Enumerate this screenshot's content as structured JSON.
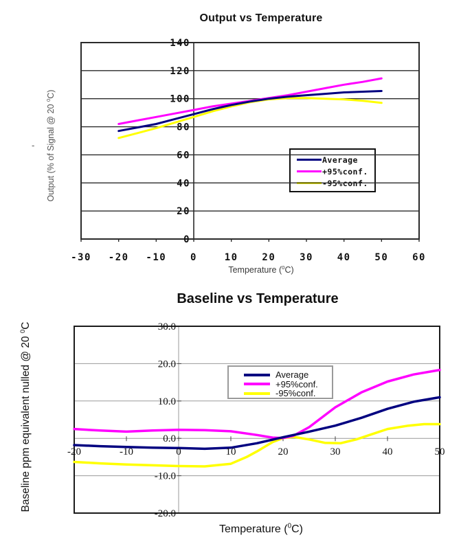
{
  "page": {
    "background": "#ffffff"
  },
  "stray_dash": "-",
  "colors": {
    "average": "#000080",
    "plus95conf": "#ff00ff",
    "minus95conf": "#ffff00"
  },
  "chart_data": [
    {
      "type": "line",
      "title": "Output vs Temperature",
      "xlabel": {
        "pre": "Temperature (",
        "sup": "0",
        "post": "C)"
      },
      "ylabel": {
        "pre": "Output (% of Signal @ 20 ",
        "sup": "0",
        "post": "C)"
      },
      "xlim": [
        -30,
        60
      ],
      "ylim": [
        0,
        140
      ],
      "xticks": [
        "-30",
        "-20",
        "-10",
        "0",
        "10",
        "20",
        "30",
        "40",
        "50",
        "60"
      ],
      "xtick_values": [
        -30,
        -20,
        -10,
        0,
        10,
        20,
        30,
        40,
        50,
        60
      ],
      "yticks": [
        "140",
        "120",
        "100",
        "80",
        "60",
        "40",
        "20",
        "0"
      ],
      "ytick_values": [
        140,
        120,
        100,
        80,
        60,
        40,
        20,
        0
      ],
      "grid": {
        "horizontal": true,
        "vertical_line_at_x": 0
      },
      "legend": {
        "position": "middle-right",
        "entries": [
          {
            "label": "Average",
            "color": "#000080"
          },
          {
            "label": "+95%conf.",
            "color": "#ff00ff"
          },
          {
            "label": "-95%conf.",
            "color": "#ffff00"
          }
        ]
      },
      "series": [
        {
          "name": "-95%conf.",
          "color": "#ffff00",
          "points": [
            [
              -20,
              72
            ],
            [
              -15,
              75.5
            ],
            [
              -10,
              79
            ],
            [
              -5,
              83
            ],
            [
              0,
              87
            ],
            [
              5,
              91
            ],
            [
              10,
              94.5
            ],
            [
              15,
              97.5
            ],
            [
              20,
              99.5
            ],
            [
              25,
              100.5
            ],
            [
              30,
              100.5
            ],
            [
              35,
              100
            ],
            [
              40,
              99.5
            ],
            [
              45,
              98.5
            ],
            [
              50,
              97
            ]
          ]
        },
        {
          "name": "+95%conf.",
          "color": "#ff00ff",
          "points": [
            [
              -20,
              82
            ],
            [
              -15,
              84.5
            ],
            [
              -10,
              87
            ],
            [
              -5,
              89.5
            ],
            [
              0,
              92
            ],
            [
              5,
              94.5
            ],
            [
              10,
              96.5
            ],
            [
              15,
              98.5
            ],
            [
              20,
              100.5
            ],
            [
              25,
              102.5
            ],
            [
              30,
              105
            ],
            [
              35,
              107.5
            ],
            [
              40,
              110
            ],
            [
              45,
              112
            ],
            [
              50,
              114.5
            ]
          ]
        },
        {
          "name": "Average",
          "color": "#000080",
          "points": [
            [
              -20,
              77
            ],
            [
              -15,
              79.5
            ],
            [
              -10,
              82
            ],
            [
              -5,
              85.5
            ],
            [
              0,
              89
            ],
            [
              5,
              92.5
            ],
            [
              10,
              95.5
            ],
            [
              15,
              98
            ],
            [
              20,
              100
            ],
            [
              25,
              101.5
            ],
            [
              30,
              102.5
            ],
            [
              35,
              103.5
            ],
            [
              40,
              104.5
            ],
            [
              45,
              105
            ],
            [
              50,
              105.5
            ]
          ]
        }
      ]
    },
    {
      "type": "line",
      "title": "Baseline vs Temperature",
      "xlabel": {
        "pre": "Temperature (",
        "sup": "0",
        "post": "C)"
      },
      "ylabel": {
        "pre": "Baseline ppm equivalent nulled @ 20 ",
        "sup": "0",
        "post": "C"
      },
      "xlim": [
        -20,
        50
      ],
      "ylim": [
        -20,
        30
      ],
      "xticks": [
        "-20",
        "-10",
        "0",
        "10",
        "20",
        "30",
        "40",
        "50"
      ],
      "xtick_values": [
        -20,
        -10,
        0,
        10,
        20,
        30,
        40,
        50
      ],
      "yticks": [
        "30.0",
        "20.0",
        "10.0",
        "0.0",
        "-10.0",
        "-20.0"
      ],
      "ytick_values": [
        30,
        20,
        10,
        0,
        -10,
        -20
      ],
      "grid": {
        "horizontal": true,
        "vertical_line_at_x": 0
      },
      "legend": {
        "position": "top-center",
        "entries": [
          {
            "label": "Average",
            "color": "#000080"
          },
          {
            "label": "+95%conf.",
            "color": "#ff00ff"
          },
          {
            "label": "-95%conf.",
            "color": "#ffff00"
          }
        ]
      },
      "series": [
        {
          "name": "-95%conf.",
          "color": "#ffff00",
          "points": [
            [
              -20,
              -6.3
            ],
            [
              -15,
              -6.7
            ],
            [
              -10,
              -7
            ],
            [
              -5,
              -7.2
            ],
            [
              0,
              -7.4
            ],
            [
              5,
              -7.5
            ],
            [
              10,
              -6.8
            ],
            [
              13,
              -5
            ],
            [
              15,
              -3.5
            ],
            [
              18,
              -1
            ],
            [
              20,
              0.1
            ],
            [
              22,
              0.4
            ],
            [
              25,
              -0.3
            ],
            [
              28,
              -1.2
            ],
            [
              31,
              -1.3
            ],
            [
              34,
              -0.3
            ],
            [
              37,
              1.1
            ],
            [
              40,
              2.5
            ],
            [
              44,
              3.4
            ],
            [
              47,
              3.8
            ],
            [
              50,
              3.8
            ]
          ]
        },
        {
          "name": "+95%conf.",
          "color": "#ff00ff",
          "points": [
            [
              -20,
              2.5
            ],
            [
              -15,
              2.1
            ],
            [
              -10,
              1.8
            ],
            [
              -5,
              2.1
            ],
            [
              0,
              2.3
            ],
            [
              5,
              2.2
            ],
            [
              10,
              1.9
            ],
            [
              15,
              0.9
            ],
            [
              18,
              0.2
            ],
            [
              20,
              0.1
            ],
            [
              22,
              0.7
            ],
            [
              25,
              3
            ],
            [
              30,
              8.3
            ],
            [
              35,
              12.3
            ],
            [
              40,
              15.2
            ],
            [
              45,
              17.1
            ],
            [
              50,
              18.3
            ]
          ]
        },
        {
          "name": "Average",
          "color": "#000080",
          "points": [
            [
              -20,
              -1.8
            ],
            [
              -15,
              -2.1
            ],
            [
              -10,
              -2.3
            ],
            [
              -5,
              -2.5
            ],
            [
              0,
              -2.6
            ],
            [
              5,
              -2.8
            ],
            [
              10,
              -2.5
            ],
            [
              15,
              -1.3
            ],
            [
              20,
              0.3
            ],
            [
              25,
              1.8
            ],
            [
              30,
              3.4
            ],
            [
              35,
              5.5
            ],
            [
              40,
              7.9
            ],
            [
              45,
              9.8
            ],
            [
              50,
              11
            ]
          ]
        }
      ]
    }
  ]
}
